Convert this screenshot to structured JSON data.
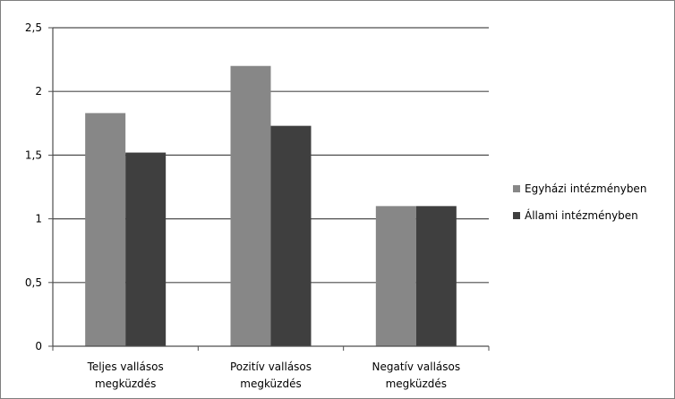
{
  "chart_data": {
    "type": "bar",
    "title": "",
    "xlabel": "",
    "ylabel": "",
    "categories": [
      [
        "Teljes vallásos",
        "megküzdés"
      ],
      [
        "Pozitív vallásos",
        "megküzdés"
      ],
      [
        "Negatív vallásos",
        "megküzdés"
      ]
    ],
    "series": [
      {
        "name": "Egyházi intézményben",
        "color": "#878787",
        "values": [
          1.83,
          2.2,
          1.1
        ]
      },
      {
        "name": "Állami intézményben",
        "color": "#3f3f3f",
        "values": [
          1.52,
          1.73,
          1.1
        ]
      }
    ],
    "ylim": [
      0,
      2.5
    ],
    "yticks": [
      0,
      0.5,
      1,
      1.5,
      2,
      2.5
    ],
    "ytick_labels": [
      "0",
      "0,5",
      "1",
      "1,5",
      "2",
      "2,5"
    ],
    "grid": true,
    "legend_position": "right"
  }
}
